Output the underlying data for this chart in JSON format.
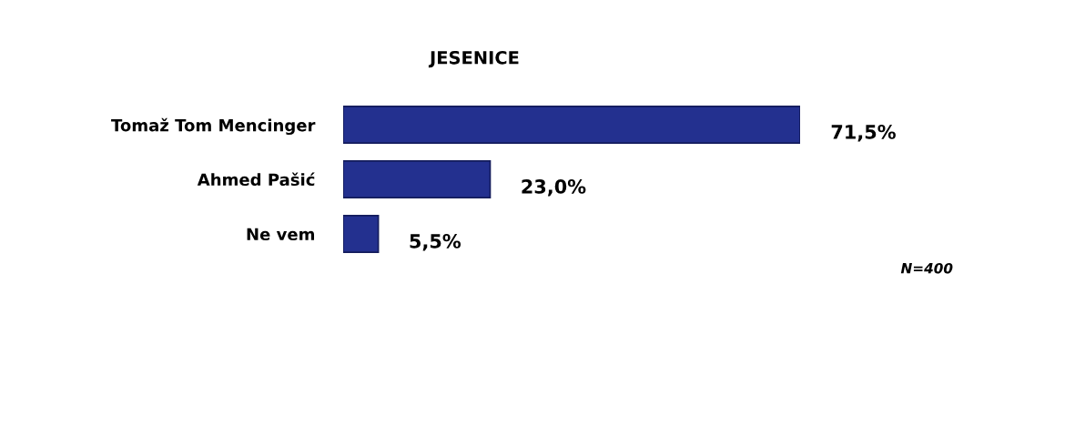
{
  "chart_data": {
    "type": "bar",
    "orientation": "horizontal",
    "title": "JESENICE",
    "categories": [
      "Tomaž Tom Mencinger",
      "Ahmed Pašić",
      "Ne vem"
    ],
    "values": [
      71.5,
      23.0,
      5.5
    ],
    "value_labels": [
      "71,5%",
      "23,0%",
      "5,5%"
    ],
    "color": "#23308f",
    "annotations": [
      "N=400"
    ]
  }
}
